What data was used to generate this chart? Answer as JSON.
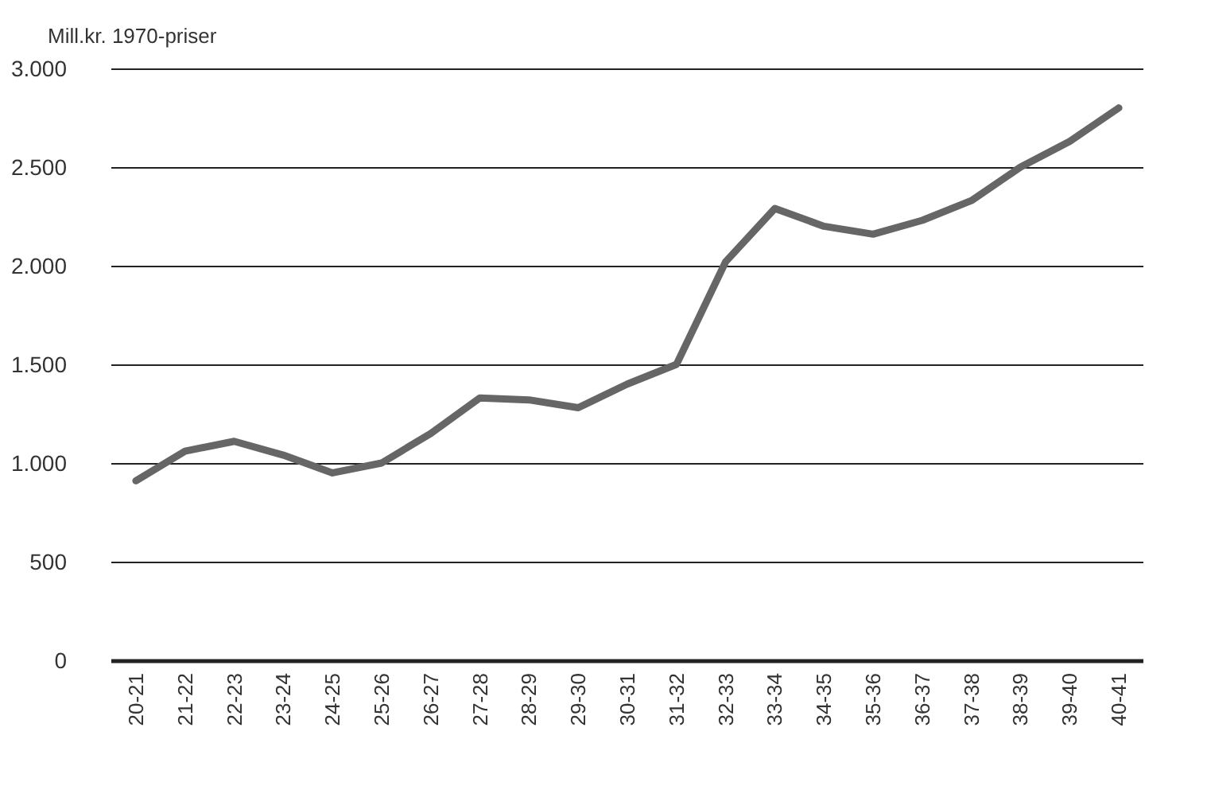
{
  "chart_data": {
    "type": "line",
    "ylabel": "Mill.kr. 1970-priser",
    "categories": [
      "20-21",
      "21-22",
      "22-23",
      "23-24",
      "24-25",
      "25-26",
      "26-27",
      "27-28",
      "28-29",
      "29-30",
      "30-31",
      "31-32",
      "32-33",
      "33-34",
      "34-35",
      "35-36",
      "36-37",
      "37-38",
      "38-39",
      "39-40",
      "40-41"
    ],
    "series": [
      {
        "color": "#666666",
        "values": [
          910,
          1060,
          1110,
          1040,
          950,
          1000,
          1150,
          1330,
          1320,
          1280,
          1400,
          1500,
          2020,
          2290,
          2200,
          2160,
          2230,
          2330,
          2500,
          2630,
          2800
        ]
      }
    ],
    "ylim": [
      0,
      3000
    ],
    "yticks": [
      {
        "value": 0,
        "label": "0"
      },
      {
        "value": 500,
        "label": "500"
      },
      {
        "value": 1000,
        "label": "1.000"
      },
      {
        "value": 1500,
        "label": "1.500"
      },
      {
        "value": 2000,
        "label": "2.000"
      },
      {
        "value": 2500,
        "label": "2.500"
      },
      {
        "value": 3000,
        "label": "3.000"
      }
    ],
    "grid": "y",
    "marker": "none",
    "line_style": "solid"
  }
}
